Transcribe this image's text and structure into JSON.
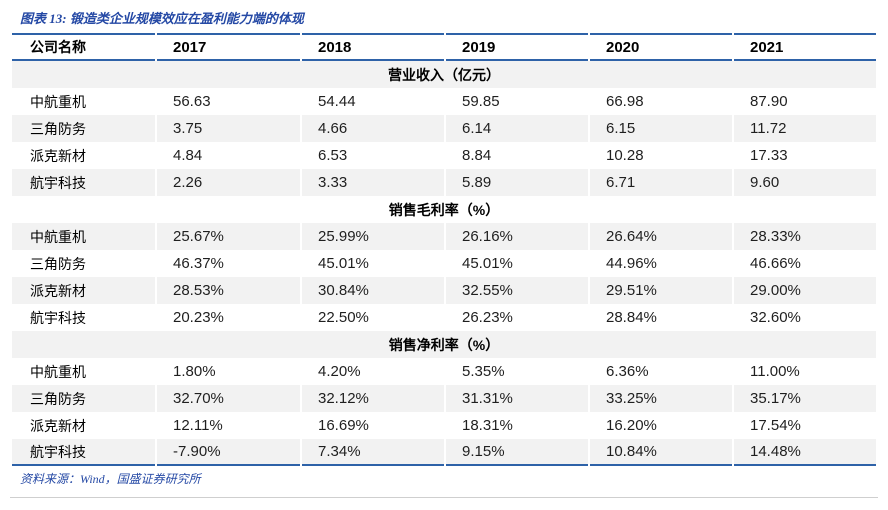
{
  "colors": {
    "rule_blue": "#2e62a8",
    "text_blue": "#2549a5",
    "stripe_gray": "#f2f2f2",
    "bottom_rule_gray": "#cfcfcf"
  },
  "chart_data": {
    "type": "table",
    "title": "图表 13: 锻造类企业规模效应在盈利能力端的体现",
    "columns": [
      "公司名称",
      "2017",
      "2018",
      "2019",
      "2020",
      "2021"
    ],
    "sections": [
      {
        "header": "营业收入（亿元）",
        "rows": [
          [
            "中航重机",
            "56.63",
            "54.44",
            "59.85",
            "66.98",
            "87.90"
          ],
          [
            "三角防务",
            "3.75",
            "4.66",
            "6.14",
            "6.15",
            "11.72"
          ],
          [
            "派克新材",
            "4.84",
            "6.53",
            "8.84",
            "10.28",
            "17.33"
          ],
          [
            "航宇科技",
            "2.26",
            "3.33",
            "5.89",
            "6.71",
            "9.60"
          ]
        ]
      },
      {
        "header": "销售毛利率（%）",
        "rows": [
          [
            "中航重机",
            "25.67%",
            "25.99%",
            "26.16%",
            "26.64%",
            "28.33%"
          ],
          [
            "三角防务",
            "46.37%",
            "45.01%",
            "45.01%",
            "44.96%",
            "46.66%"
          ],
          [
            "派克新材",
            "28.53%",
            "30.84%",
            "32.55%",
            "29.51%",
            "29.00%"
          ],
          [
            "航宇科技",
            "20.23%",
            "22.50%",
            "26.23%",
            "28.84%",
            "32.60%"
          ]
        ]
      },
      {
        "header": "销售净利率（%）",
        "rows": [
          [
            "中航重机",
            "1.80%",
            "4.20%",
            "5.35%",
            "6.36%",
            "11.00%"
          ],
          [
            "三角防务",
            "32.70%",
            "32.12%",
            "31.31%",
            "33.25%",
            "35.17%"
          ],
          [
            "派克新材",
            "12.11%",
            "16.69%",
            "18.31%",
            "16.20%",
            "17.54%"
          ],
          [
            "航宇科技",
            "-7.90%",
            "7.34%",
            "9.15%",
            "10.84%",
            "14.48%"
          ]
        ]
      }
    ],
    "source_note": "资料来源：Wind，国盛证券研究所"
  }
}
